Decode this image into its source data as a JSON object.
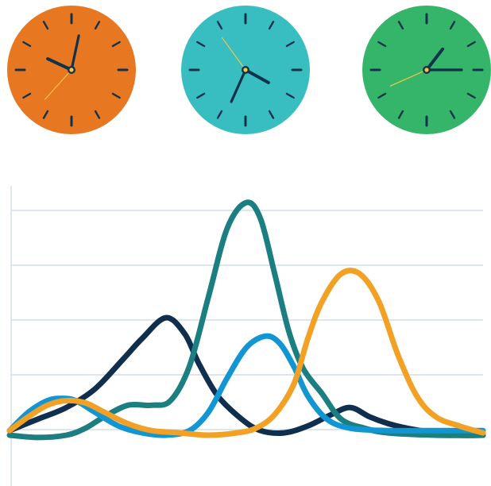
{
  "clocks": [
    {
      "name": "clock-orange",
      "face_color": "#e87722",
      "hour": 9.8,
      "minute": 2,
      "second": 37
    },
    {
      "name": "clock-teal",
      "face_color": "#38bec1",
      "hour": 3.4,
      "minute": 34,
      "second": 54
    },
    {
      "name": "clock-green",
      "face_color": "#35b56a",
      "hour": 1,
      "minute": 15,
      "second": 41
    }
  ],
  "colors": {
    "hand": "#12324c",
    "second_hand": "#f6c445",
    "tick": "#12324c",
    "grid": "#d2dde6"
  },
  "chart_data": {
    "type": "line",
    "title": "",
    "xlabel": "",
    "ylabel": "",
    "xlim": [
      0,
      100
    ],
    "ylim": [
      0,
      100
    ],
    "grid": true,
    "series": [
      {
        "color": "#102f4e",
        "x": [
          0,
          6,
          12,
          18,
          24,
          28,
          33,
          37,
          40,
          44,
          49,
          53,
          58,
          63,
          68,
          72,
          76,
          80,
          84,
          90,
          95,
          100
        ],
        "y": [
          2,
          7,
          12,
          20,
          33,
          42,
          51,
          44,
          31,
          17,
          7,
          2,
          1,
          4,
          9,
          12,
          8,
          5,
          3,
          1,
          0,
          0
        ]
      },
      {
        "color": "#1b7e81",
        "x": [
          0,
          6,
          12,
          16,
          20,
          25,
          30,
          34,
          38,
          42,
          46,
          50,
          53,
          56,
          59,
          62,
          66,
          70,
          75,
          80,
          90,
          100
        ],
        "y": [
          0,
          -1,
          0,
          3,
          8,
          13,
          13,
          15,
          30,
          60,
          90,
          101,
          94,
          70,
          45,
          29,
          18,
          7,
          3,
          1,
          0,
          0
        ]
      },
      {
        "color": "#1196d3",
        "x": [
          0,
          4,
          8,
          11,
          14,
          18,
          23,
          28,
          33,
          38,
          42,
          46,
          50,
          54,
          57,
          60,
          63,
          67,
          72,
          80,
          90,
          100
        ],
        "y": [
          2,
          10,
          15,
          16,
          15,
          10,
          4,
          1,
          0,
          2,
          10,
          25,
          38,
          43,
          40,
          30,
          17,
          7,
          3,
          2,
          2,
          2
        ]
      },
      {
        "color": "#f2a125",
        "x": [
          0,
          4,
          8,
          12,
          16,
          20,
          25,
          30,
          36,
          42,
          48,
          52,
          56,
          60,
          63,
          66,
          70,
          74,
          78,
          82,
          86,
          90,
          95,
          100
        ],
        "y": [
          2,
          8,
          13,
          15,
          14,
          10,
          5,
          2,
          1,
          0,
          1,
          3,
          9,
          22,
          42,
          58,
          70,
          70,
          58,
          35,
          17,
          8,
          4,
          1
        ]
      }
    ]
  }
}
